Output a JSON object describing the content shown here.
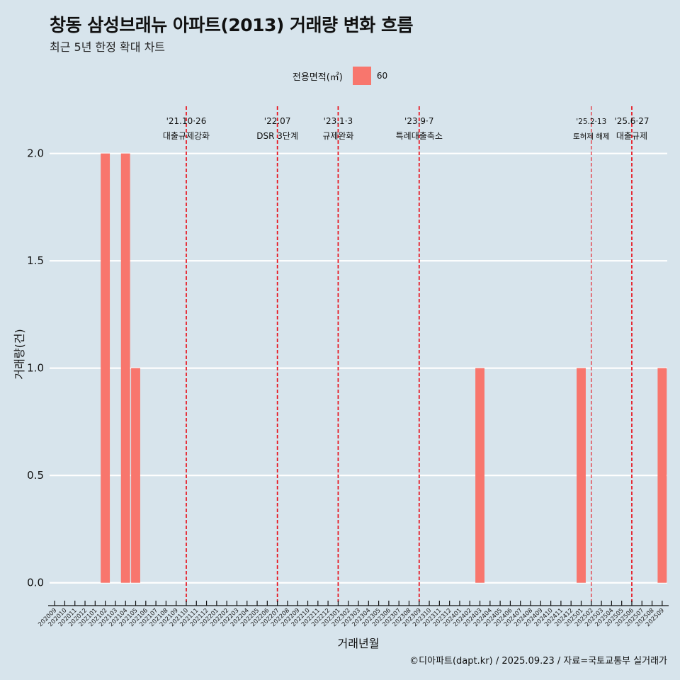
{
  "title": "창동 삼성브래뉴 아파트(2013) 거래량 변화 흐름",
  "subtitle": "최근 5년 한정 확대 차트",
  "caption": "©디아파트(dapt.kr) / 2025.09.23 / 자료=국토교통부 실거래가",
  "legend": {
    "title": "전용면적(㎡)",
    "label": "60",
    "color": "#f8766d"
  },
  "chart_data": {
    "type": "bar",
    "xlabel": "거래년월",
    "ylabel": "거래량(건)",
    "ylim": [
      -0.09,
      2.22
    ],
    "yticks": [
      0.0,
      0.5,
      1.0,
      1.5,
      2.0
    ],
    "ytick_labels": [
      "0.0",
      "0.5",
      "1.0",
      "1.5",
      "2.0"
    ],
    "categories": [
      "202009",
      "202010",
      "202011",
      "202012",
      "202101",
      "202102",
      "202103",
      "202104",
      "202105",
      "202106",
      "202107",
      "202108",
      "202109",
      "202110",
      "202111",
      "202112",
      "202201",
      "202202",
      "202203",
      "202204",
      "202205",
      "202206",
      "202207",
      "202208",
      "202209",
      "202210",
      "202211",
      "202212",
      "202301",
      "202302",
      "202303",
      "202304",
      "202305",
      "202306",
      "202307",
      "202308",
      "202309",
      "202310",
      "202311",
      "202312",
      "202401",
      "202402",
      "202403",
      "202404",
      "202405",
      "202406",
      "202407",
      "202408",
      "202409",
      "202410",
      "202411",
      "202412",
      "202501",
      "202502",
      "202503",
      "202504",
      "202505",
      "202506",
      "202507",
      "202508",
      "202509"
    ],
    "series": [
      {
        "name": "60",
        "color": "#f8766d",
        "values": [
          0,
          0,
          0,
          0,
          0,
          2,
          0,
          2,
          1,
          0,
          0,
          0,
          0,
          0,
          0,
          0,
          0,
          0,
          0,
          0,
          0,
          0,
          0,
          0,
          0,
          0,
          0,
          0,
          0,
          0,
          0,
          0,
          0,
          0,
          0,
          0,
          0,
          0,
          0,
          0,
          0,
          0,
          1,
          0,
          0,
          0,
          0,
          0,
          0,
          0,
          0,
          0,
          1,
          0,
          0,
          0,
          0,
          0,
          0,
          0,
          1
        ]
      }
    ],
    "events": [
      {
        "month": "202110",
        "date": "'21.10·26",
        "label": "대출규제강화",
        "thin": false
      },
      {
        "month": "202207",
        "date": "'22.07",
        "label": "DSR 3단계",
        "thin": false
      },
      {
        "month": "202301",
        "date": "'23.1·3",
        "label": "규제완화",
        "thin": false
      },
      {
        "month": "202309",
        "date": "'23.9·7",
        "label": "특례대출축소",
        "thin": false
      },
      {
        "month": "202502",
        "date": "'25.2·13",
        "label": "토허제 해제",
        "thin": true
      },
      {
        "month": "202506",
        "date": "'25.6·27",
        "label": "대출규제",
        "thin": false
      }
    ]
  }
}
